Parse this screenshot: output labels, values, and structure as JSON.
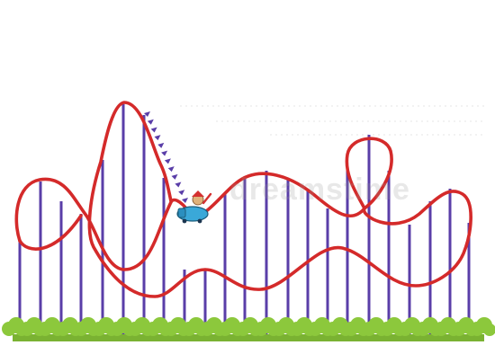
{
  "scene": {
    "subject": "roller-coaster",
    "colors": {
      "track": "#d42a2a",
      "supports": "#5a3ea8",
      "bushes": "#8cc83c",
      "ground": "#7ab232",
      "car": "#3aa8d8",
      "rider": "#d43030",
      "background": "#ffffff"
    }
  },
  "watermark": {
    "text": "dreamstime"
  }
}
